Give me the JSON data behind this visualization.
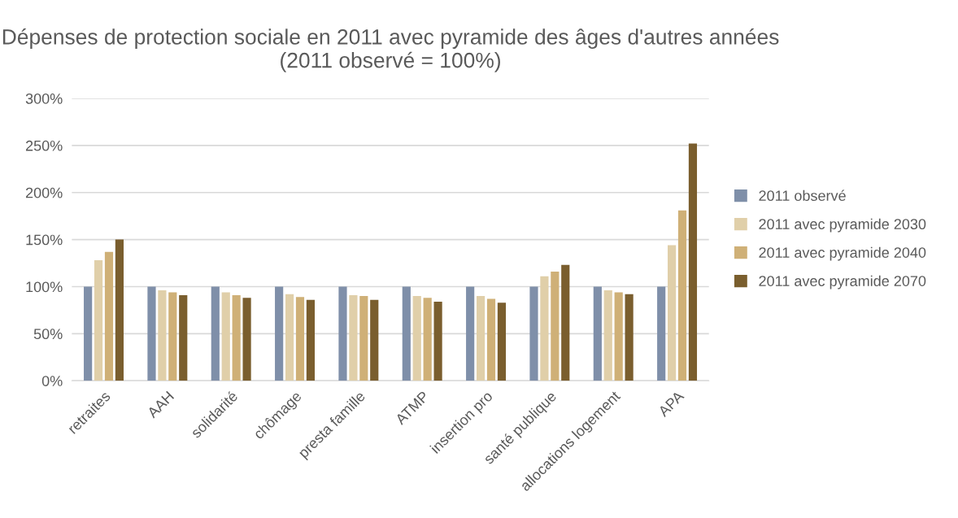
{
  "chart_data": {
    "type": "bar",
    "title": "Dépenses de protection sociale en 2011 avec pyramide des âges d'autres années (2011 observé = 100%)",
    "categories": [
      "retraites",
      "AAH",
      "solidarité",
      "chômage",
      "presta famille",
      "ATMP",
      "insertion pro",
      "santé publique",
      "allocations logement",
      "APA"
    ],
    "series": [
      {
        "name": "2011 observé",
        "color": "#7f8fa9",
        "values": [
          100,
          100,
          100,
          100,
          100,
          100,
          100,
          100,
          100,
          100
        ]
      },
      {
        "name": "2011 avec pyramide 2030",
        "color": "#e0cfa9",
        "values": [
          128,
          96,
          94,
          92,
          91,
          90,
          90,
          111,
          96,
          144
        ]
      },
      {
        "name": "2011 avec pyramide 2040",
        "color": "#cfb077",
        "values": [
          137,
          94,
          91,
          89,
          90,
          88,
          87,
          116,
          94,
          181
        ]
      },
      {
        "name": "2011 avec pyramide 2070",
        "color": "#7a5e2e",
        "values": [
          150,
          91,
          88,
          86,
          86,
          84,
          83,
          123,
          92,
          252
        ]
      }
    ],
    "ylim": [
      0,
      300
    ],
    "yticks": [
      {
        "value": 0,
        "label": "0%"
      },
      {
        "value": 50,
        "label": "50%"
      },
      {
        "value": 100,
        "label": "100%"
      },
      {
        "value": 150,
        "label": "150%"
      },
      {
        "value": 200,
        "label": "200%"
      },
      {
        "value": 250,
        "label": "250%"
      },
      {
        "value": 300,
        "label": "300%"
      }
    ],
    "grid": "y",
    "legend": "right"
  }
}
